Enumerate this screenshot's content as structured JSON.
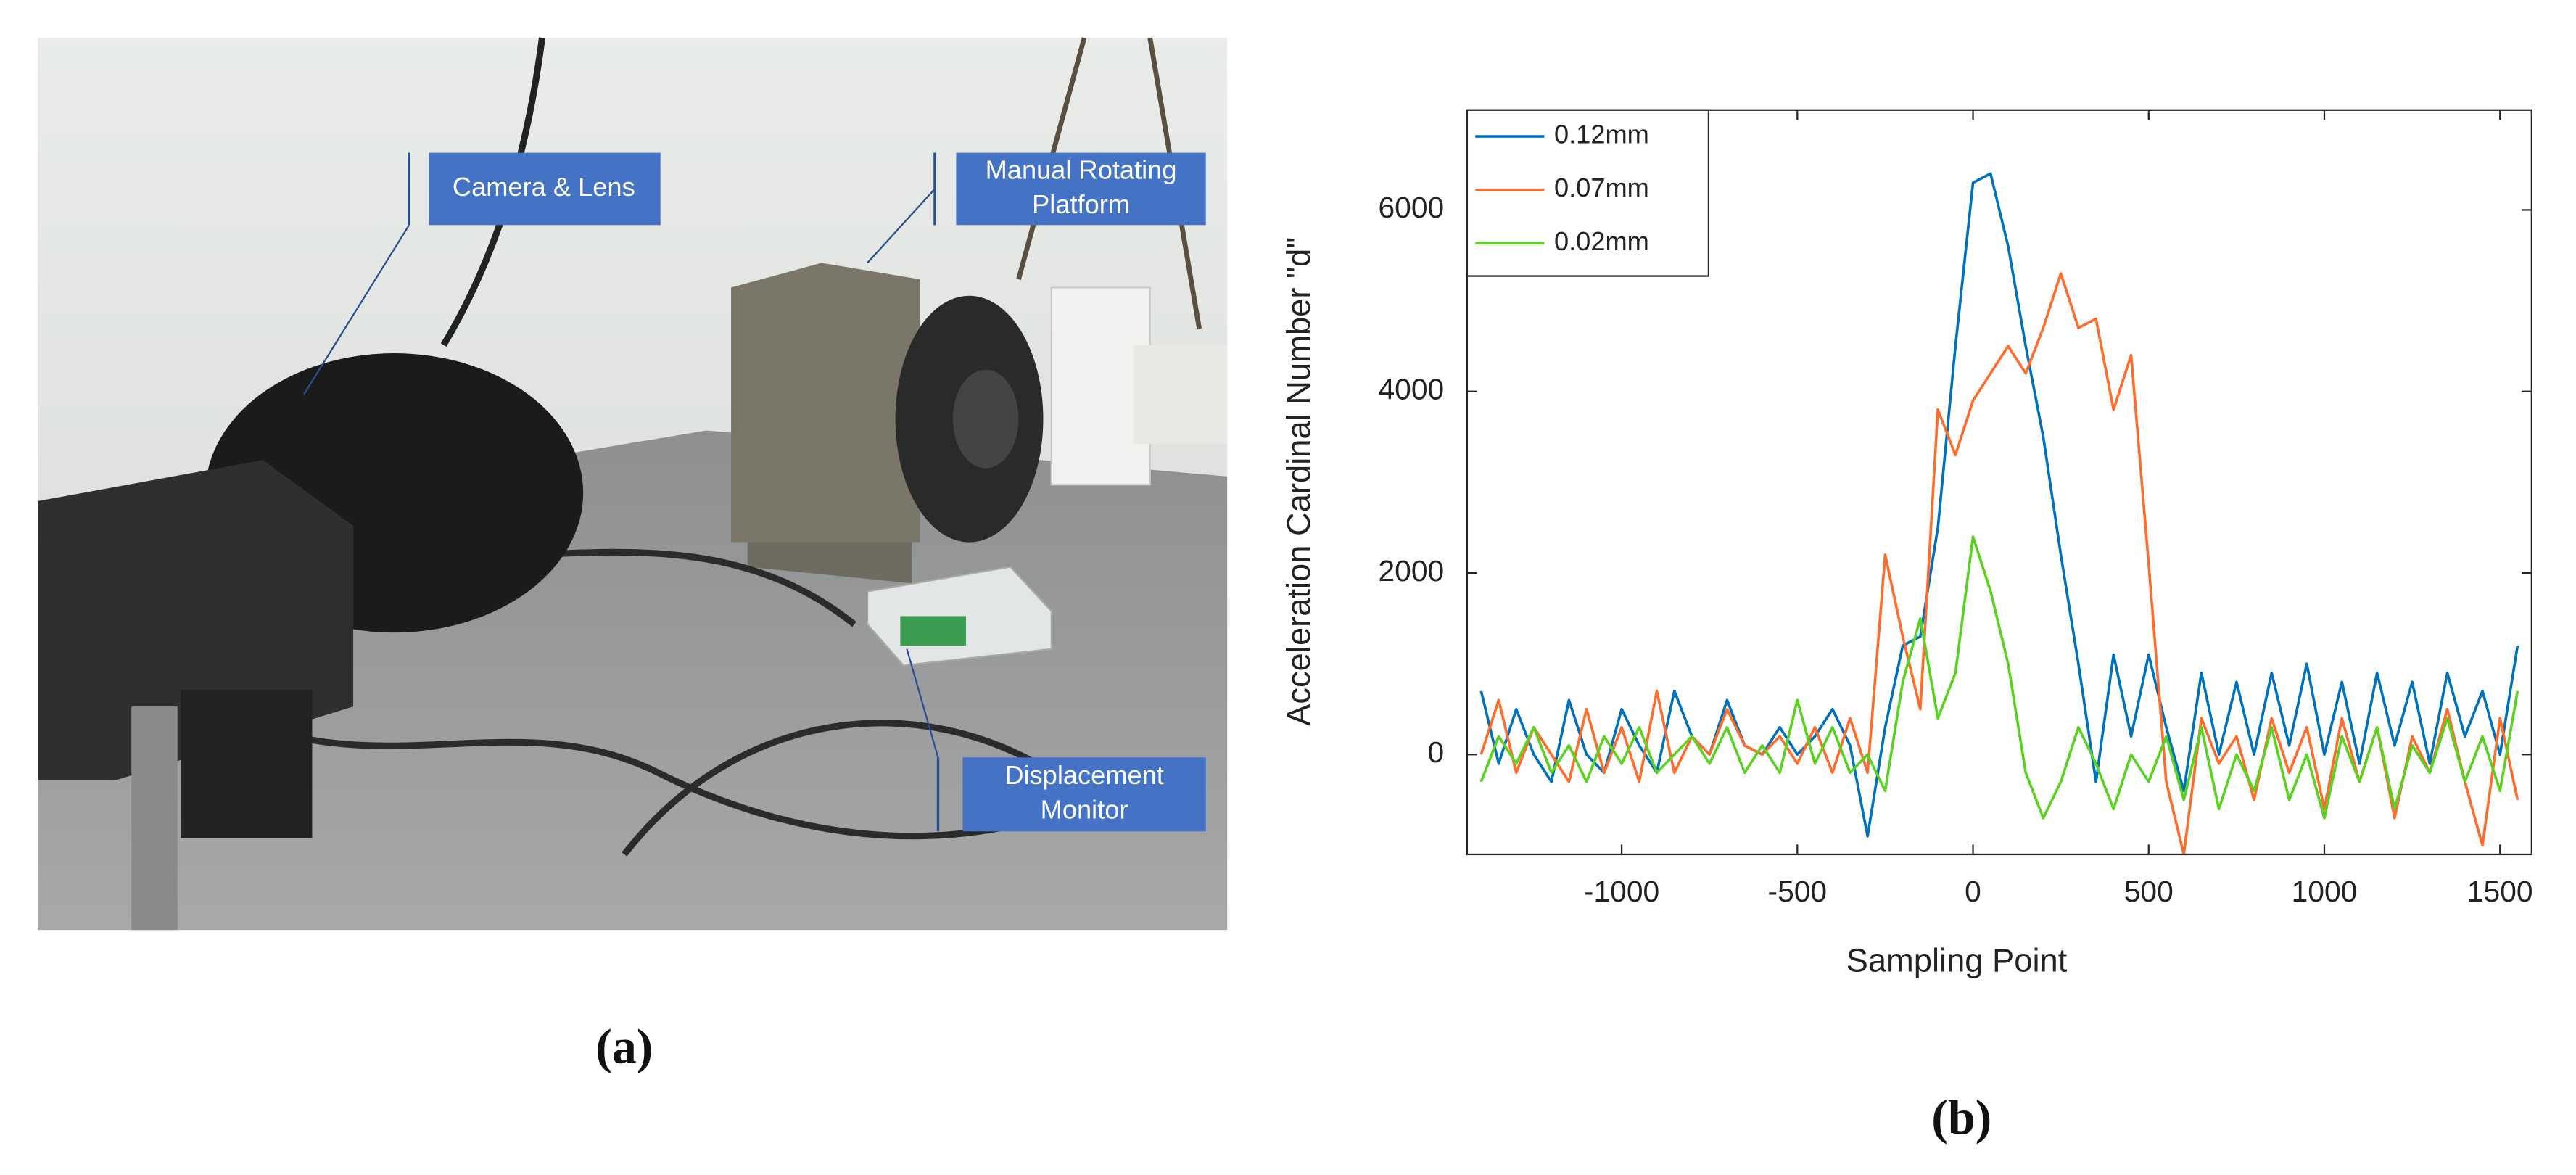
{
  "figure_a": {
    "labels": [
      [
        "Camera & Lens"
      ],
      [
        "Manual Rotating",
        "Platform"
      ],
      [
        "Displacement",
        "Monitor"
      ]
    ],
    "caption": "(a)"
  },
  "chart_data": {
    "type": "line",
    "caption": "(b)",
    "xlabel": "Sampling Point",
    "ylabel": "Acceleration Cardinal Number \"d\"",
    "x": [
      -1400,
      -1350,
      -1300,
      -1250,
      -1200,
      -1150,
      -1100,
      -1050,
      -1000,
      -950,
      -900,
      -850,
      -800,
      -750,
      -700,
      -650,
      -600,
      -550,
      -500,
      -450,
      -400,
      -350,
      -300,
      -250,
      -200,
      -150,
      -100,
      -50,
      0,
      50,
      100,
      150,
      200,
      250,
      300,
      350,
      400,
      450,
      500,
      550,
      600,
      650,
      700,
      750,
      800,
      850,
      900,
      950,
      1000,
      1050,
      1100,
      1150,
      1200,
      1250,
      1300,
      1350,
      1400,
      1450,
      1500,
      1550
    ],
    "series": [
      {
        "name": "0.12mm",
        "color": "#0072bd",
        "values": [
          700,
          -100,
          500,
          0,
          -300,
          600,
          0,
          -200,
          500,
          100,
          -200,
          700,
          200,
          0,
          600,
          100,
          0,
          300,
          0,
          200,
          500,
          100,
          -900,
          300,
          1200,
          1300,
          2500,
          4500,
          6300,
          6400,
          5600,
          4500,
          3500,
          2200,
          1000,
          -300,
          1100,
          200,
          1100,
          300,
          -400,
          900,
          0,
          800,
          0,
          900,
          100,
          1000,
          0,
          800,
          -100,
          900,
          100,
          800,
          -100,
          900,
          200,
          700,
          0,
          1200
        ]
      },
      {
        "name": "0.07mm",
        "color": "#ff6d2d",
        "values": [
          0,
          600,
          -200,
          300,
          0,
          -300,
          500,
          -200,
          300,
          -300,
          700,
          -200,
          200,
          0,
          500,
          100,
          0,
          200,
          -100,
          300,
          -200,
          400,
          -200,
          2200,
          1300,
          500,
          3800,
          3300,
          3900,
          4200,
          4500,
          4200,
          4700,
          5300,
          4700,
          4800,
          3800,
          4400,
          2100,
          -300,
          -1100,
          400,
          -100,
          200,
          -500,
          400,
          -200,
          300,
          -600,
          400,
          -300,
          300,
          -700,
          200,
          -200,
          500,
          -300,
          -1000,
          400,
          -500
        ]
      },
      {
        "name": "0.02mm",
        "color": "#5bd221",
        "values": [
          -300,
          200,
          -100,
          300,
          -200,
          100,
          -300,
          200,
          -100,
          300,
          -200,
          0,
          200,
          -100,
          300,
          -200,
          100,
          -200,
          600,
          -100,
          300,
          -200,
          0,
          -400,
          800,
          1500,
          400,
          900,
          2400,
          1800,
          1000,
          -200,
          -700,
          -300,
          300,
          -100,
          -600,
          0,
          -300,
          200,
          -500,
          300,
          -600,
          0,
          -400,
          300,
          -500,
          0,
          -700,
          200,
          -300,
          300,
          -600,
          100,
          -200,
          400,
          -300,
          200,
          -400,
          700
        ]
      }
    ],
    "xlim": [
      -1440,
      1590
    ],
    "ylim": [
      -1100,
      7100
    ],
    "xticks": [
      -1000,
      -500,
      0,
      500,
      1000,
      1500
    ],
    "yticks": [
      0,
      2000,
      4000,
      6000
    ],
    "legend": "upper left"
  }
}
